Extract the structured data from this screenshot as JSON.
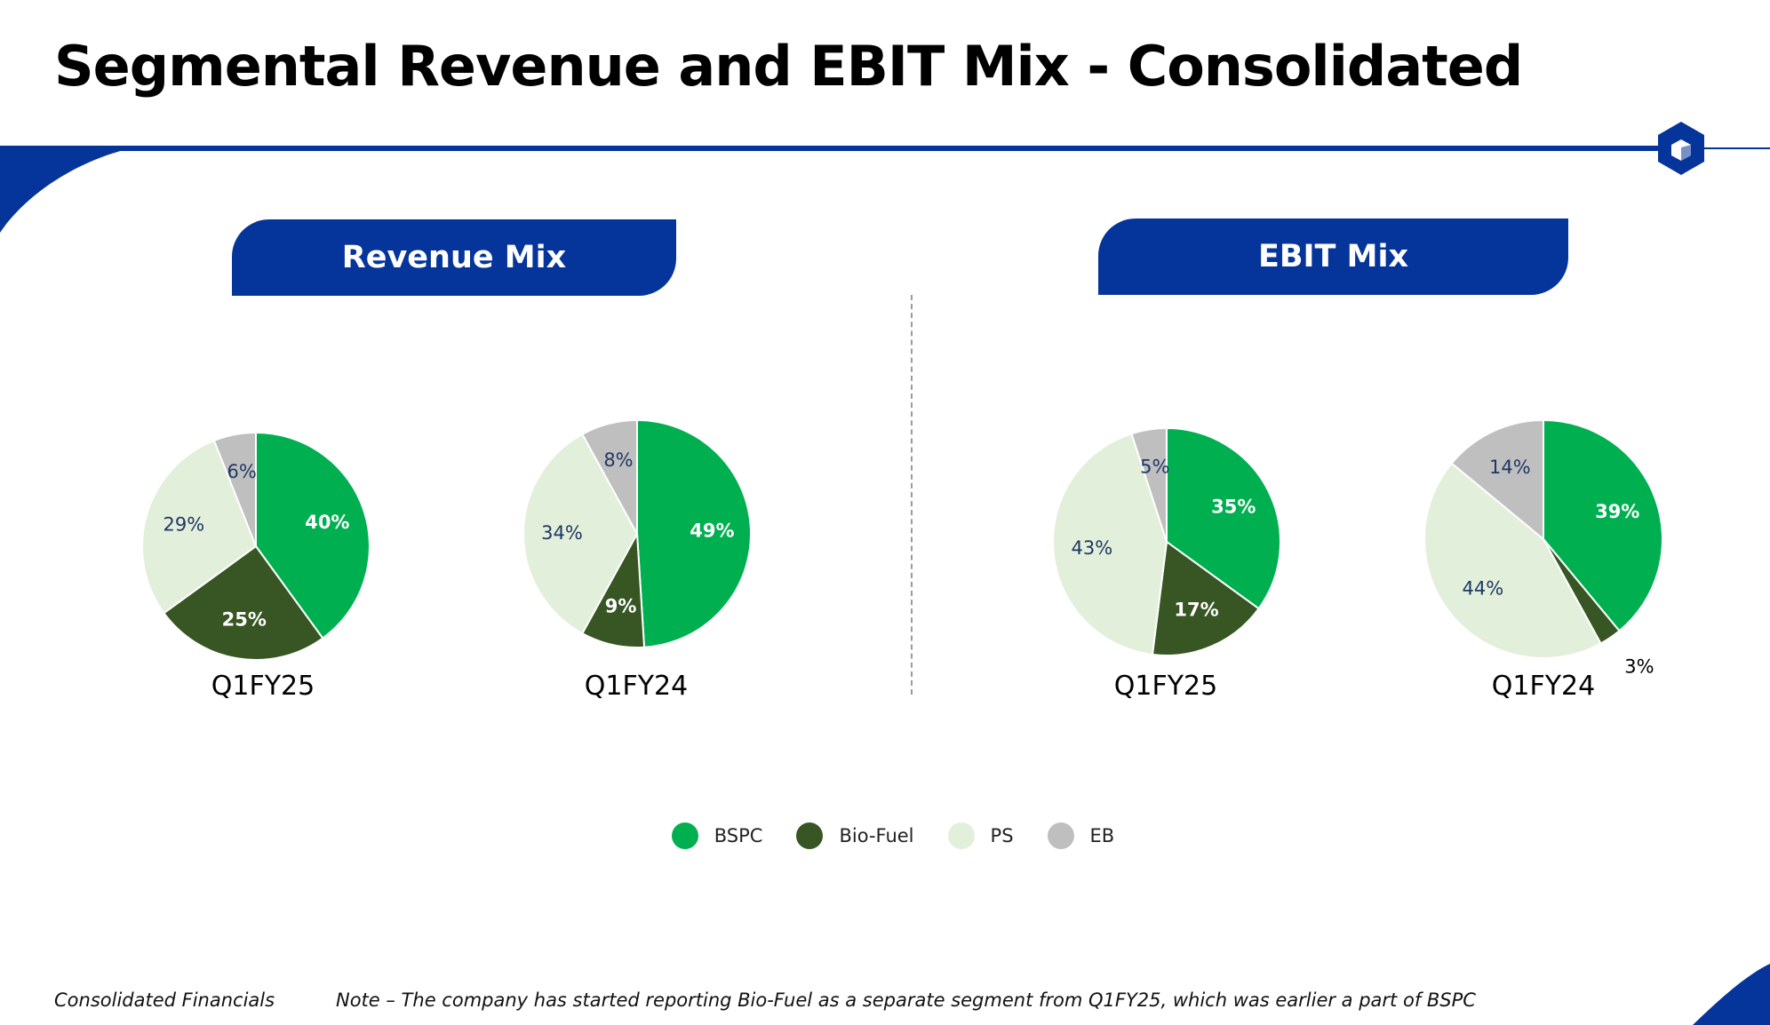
{
  "title": "Segmental Revenue and EBIT Mix - Consolidated",
  "panels": {
    "revenue": {
      "header": "Revenue Mix"
    },
    "ebit": {
      "header": "EBIT Mix"
    }
  },
  "colors": {
    "brand": "#05359a",
    "BSPC": "#00b050",
    "Bio-Fuel": "#375623",
    "PS": "#e2efda",
    "EB": "#bfbfbf"
  },
  "chart_data": [
    {
      "type": "pie",
      "title": "Revenue Mix",
      "label": "Q1FY25",
      "categories": [
        "BSPC",
        "Bio-Fuel",
        "PS",
        "EB"
      ],
      "values": [
        40,
        25,
        29,
        6
      ],
      "labels": [
        "40%",
        "25%",
        "29%",
        "6%"
      ]
    },
    {
      "type": "pie",
      "title": "Revenue Mix",
      "label": "Q1FY24",
      "categories": [
        "BSPC",
        "Bio-Fuel",
        "PS",
        "EB"
      ],
      "values": [
        49,
        9,
        34,
        8
      ],
      "labels": [
        "49%",
        "9%",
        "34%",
        "8%"
      ]
    },
    {
      "type": "pie",
      "title": "EBIT Mix",
      "label": "Q1FY25",
      "categories": [
        "BSPC",
        "Bio-Fuel",
        "PS",
        "EB"
      ],
      "values": [
        35,
        17,
        43,
        5
      ],
      "labels": [
        "35%",
        "17%",
        "43%",
        "5%"
      ]
    },
    {
      "type": "pie",
      "title": "EBIT Mix",
      "label": "Q1FY24",
      "categories": [
        "BSPC",
        "Bio-Fuel",
        "PS",
        "EB"
      ],
      "values": [
        39,
        3,
        44,
        14
      ],
      "labels": [
        "39%",
        "3%",
        "44%",
        "14%"
      ]
    }
  ],
  "legend": [
    "BSPC",
    "Bio-Fuel",
    "PS",
    "EB"
  ],
  "footer": {
    "left": "Consolidated Financials",
    "note": "Note – The company has started reporting Bio-Fuel as a separate segment from Q1FY25, which was earlier a part of BSPC"
  }
}
